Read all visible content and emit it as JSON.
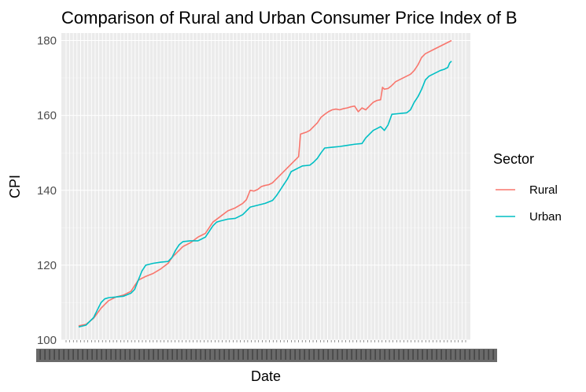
{
  "chart_data": {
    "type": "line",
    "title": "Comparison of Rural and Urban Consumer Price Index of B",
    "xlabel": "Date",
    "ylabel": "CPI",
    "ylim": [
      100,
      182
    ],
    "y_ticks": [
      100,
      120,
      140,
      160,
      180
    ],
    "grid": true,
    "legend": {
      "title": "Sector",
      "placement": "right"
    },
    "x_index_range": [
      0,
      100
    ],
    "series": [
      {
        "name": "Rural",
        "color": "#f8766d",
        "points": [
          [
            0,
            103.8
          ],
          [
            2,
            104.2
          ],
          [
            4,
            105.8
          ],
          [
            6,
            108.5
          ],
          [
            8,
            110.5
          ],
          [
            10,
            111.5
          ],
          [
            12,
            112.0
          ],
          [
            14,
            113.0
          ],
          [
            15,
            114.5
          ],
          [
            16,
            116.0
          ],
          [
            18,
            117.0
          ],
          [
            20,
            117.8
          ],
          [
            22,
            119.0
          ],
          [
            24,
            120.5
          ],
          [
            25,
            122.0
          ],
          [
            26,
            123.0
          ],
          [
            28,
            125.0
          ],
          [
            30,
            126.0
          ],
          [
            32,
            127.5
          ],
          [
            34,
            128.5
          ],
          [
            35,
            130.0
          ],
          [
            36,
            131.5
          ],
          [
            38,
            133.0
          ],
          [
            40,
            134.5
          ],
          [
            42,
            135.3
          ],
          [
            44,
            136.5
          ],
          [
            45,
            137.5
          ],
          [
            46,
            140.0
          ],
          [
            47,
            139.8
          ],
          [
            48,
            140.2
          ],
          [
            49,
            141.0
          ],
          [
            50,
            141.3
          ],
          [
            51,
            141.5
          ],
          [
            52,
            142.0
          ],
          [
            53,
            143.0
          ],
          [
            54,
            144.0
          ],
          [
            55,
            145.0
          ],
          [
            56,
            146.0
          ],
          [
            57,
            147.0
          ],
          [
            58,
            148.0
          ],
          [
            59,
            149.0
          ],
          [
            59.5,
            155.0
          ],
          [
            61,
            155.5
          ],
          [
            62,
            156.0
          ],
          [
            63,
            157.0
          ],
          [
            64,
            158.0
          ],
          [
            65,
            159.5
          ],
          [
            66,
            160.3
          ],
          [
            67,
            161.0
          ],
          [
            68,
            161.5
          ],
          [
            69,
            161.7
          ],
          [
            70,
            161.5
          ],
          [
            71,
            161.8
          ],
          [
            72,
            162.0
          ],
          [
            73,
            162.3
          ],
          [
            74,
            162.5
          ],
          [
            75,
            161.0
          ],
          [
            76,
            162.0
          ],
          [
            77,
            161.5
          ],
          [
            78,
            162.5
          ],
          [
            79,
            163.5
          ],
          [
            80,
            164.0
          ],
          [
            81,
            164.2
          ],
          [
            81.5,
            167.5
          ],
          [
            82,
            167.0
          ],
          [
            83,
            167.2
          ],
          [
            84,
            168.0
          ],
          [
            85,
            169.0
          ],
          [
            86,
            169.5
          ],
          [
            87,
            170.0
          ],
          [
            88,
            170.5
          ],
          [
            89,
            171.0
          ],
          [
            90,
            172.0
          ],
          [
            91,
            173.5
          ],
          [
            92,
            175.5
          ],
          [
            93,
            176.5
          ],
          [
            94,
            177.0
          ],
          [
            95,
            177.5
          ],
          [
            96,
            178.0
          ],
          [
            97,
            178.5
          ],
          [
            98,
            179.0
          ],
          [
            99,
            179.5
          ],
          [
            100,
            180.0
          ]
        ]
      },
      {
        "name": "Urban",
        "color": "#00bfc4",
        "points": [
          [
            0,
            103.5
          ],
          [
            2,
            104.0
          ],
          [
            4,
            106.0
          ],
          [
            5,
            108.0
          ],
          [
            6,
            110.0
          ],
          [
            7,
            111.0
          ],
          [
            8,
            111.3
          ],
          [
            10,
            111.5
          ],
          [
            12,
            111.7
          ],
          [
            14,
            112.5
          ],
          [
            15,
            113.5
          ],
          [
            16,
            116.0
          ],
          [
            17,
            118.5
          ],
          [
            18,
            120.0
          ],
          [
            20,
            120.5
          ],
          [
            22,
            120.8
          ],
          [
            24,
            121.0
          ],
          [
            25,
            122.0
          ],
          [
            26,
            124.0
          ],
          [
            27,
            125.5
          ],
          [
            28,
            126.3
          ],
          [
            30,
            126.5
          ],
          [
            32,
            126.5
          ],
          [
            34,
            127.5
          ],
          [
            35,
            129.0
          ],
          [
            36,
            130.5
          ],
          [
            37,
            131.5
          ],
          [
            38,
            131.8
          ],
          [
            40,
            132.3
          ],
          [
            42,
            132.5
          ],
          [
            44,
            133.5
          ],
          [
            45,
            134.5
          ],
          [
            46,
            135.5
          ],
          [
            48,
            136.0
          ],
          [
            50,
            136.5
          ],
          [
            52,
            137.3
          ],
          [
            53,
            138.5
          ],
          [
            54,
            140.0
          ],
          [
            55,
            141.5
          ],
          [
            56,
            143.0
          ],
          [
            57,
            145.0
          ],
          [
            58,
            145.5
          ],
          [
            59,
            146.0
          ],
          [
            60,
            146.5
          ],
          [
            62,
            146.7
          ],
          [
            63,
            147.5
          ],
          [
            64,
            148.5
          ],
          [
            65,
            150.0
          ],
          [
            66,
            151.3
          ],
          [
            68,
            151.5
          ],
          [
            70,
            151.7
          ],
          [
            72,
            152.0
          ],
          [
            74,
            152.3
          ],
          [
            76,
            152.5
          ],
          [
            77,
            154.0
          ],
          [
            78,
            155.0
          ],
          [
            79,
            156.0
          ],
          [
            80,
            156.5
          ],
          [
            81,
            157.0
          ],
          [
            82,
            156.0
          ],
          [
            83,
            157.5
          ],
          [
            84,
            160.3
          ],
          [
            86,
            160.5
          ],
          [
            88,
            160.7
          ],
          [
            89,
            161.5
          ],
          [
            90,
            163.5
          ],
          [
            91,
            165.0
          ],
          [
            92,
            167.0
          ],
          [
            93,
            169.5
          ],
          [
            94,
            170.5
          ],
          [
            95,
            171.0
          ],
          [
            96,
            171.5
          ],
          [
            97,
            172.0
          ],
          [
            98,
            172.3
          ],
          [
            99,
            172.8
          ],
          [
            99.5,
            174.0
          ],
          [
            100,
            174.5
          ]
        ]
      }
    ]
  }
}
